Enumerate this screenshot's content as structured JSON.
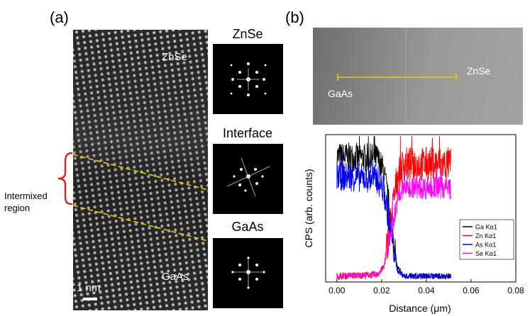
{
  "panel_a": {
    "label": "(a)",
    "tem_labels": {
      "top": "ZnSe",
      "bottom": "GaAs"
    },
    "scale_bar": "1 nm",
    "side_label": [
      "Intermixed",
      "region"
    ],
    "fft": [
      {
        "title": "ZnSe"
      },
      {
        "title": "Interface"
      },
      {
        "title": "GaAs"
      }
    ],
    "colors": {
      "interface_lines": "#e8d400",
      "bracket": "#e02020"
    }
  },
  "panel_b": {
    "label": "(b)",
    "image_labels": {
      "left": "GaAs",
      "right": "ZnSe"
    },
    "scan_line_color": "#d8d400"
  },
  "chart_data": {
    "type": "line",
    "title": "",
    "xlabel": "Distance (μm)",
    "ylabel": "CPS (arb. counts)",
    "xlim": [
      -0.005,
      0.08
    ],
    "ylim": [
      0,
      1
    ],
    "x_ticks": [
      "0.00",
      "0.02",
      "0.04",
      "0.06",
      "0.08"
    ],
    "x_tick_values": [
      0.0,
      0.02,
      0.04,
      0.06,
      0.08
    ],
    "legend_position": "bottom-right",
    "series": [
      {
        "name": "Ga Kα1",
        "color": "#000000",
        "x": [
          0.0,
          0.018,
          0.021,
          0.024,
          0.027,
          0.03,
          0.051
        ],
        "values": [
          0.85,
          0.84,
          0.75,
          0.45,
          0.1,
          0.04,
          0.04
        ]
      },
      {
        "name": "Zn Kα1",
        "color": "#ff0000",
        "x": [
          0.0,
          0.018,
          0.021,
          0.024,
          0.027,
          0.03,
          0.051
        ],
        "values": [
          0.04,
          0.05,
          0.1,
          0.4,
          0.72,
          0.8,
          0.8
        ]
      },
      {
        "name": "As Kα1",
        "color": "#0000ff",
        "x": [
          0.0,
          0.018,
          0.021,
          0.024,
          0.027,
          0.03,
          0.051
        ],
        "values": [
          0.72,
          0.7,
          0.62,
          0.35,
          0.08,
          0.04,
          0.04
        ]
      },
      {
        "name": "Se Kα1",
        "color": "#ff00ff",
        "x": [
          0.0,
          0.018,
          0.021,
          0.024,
          0.027,
          0.03,
          0.051
        ],
        "values": [
          0.04,
          0.05,
          0.1,
          0.32,
          0.55,
          0.64,
          0.64
        ]
      }
    ]
  }
}
